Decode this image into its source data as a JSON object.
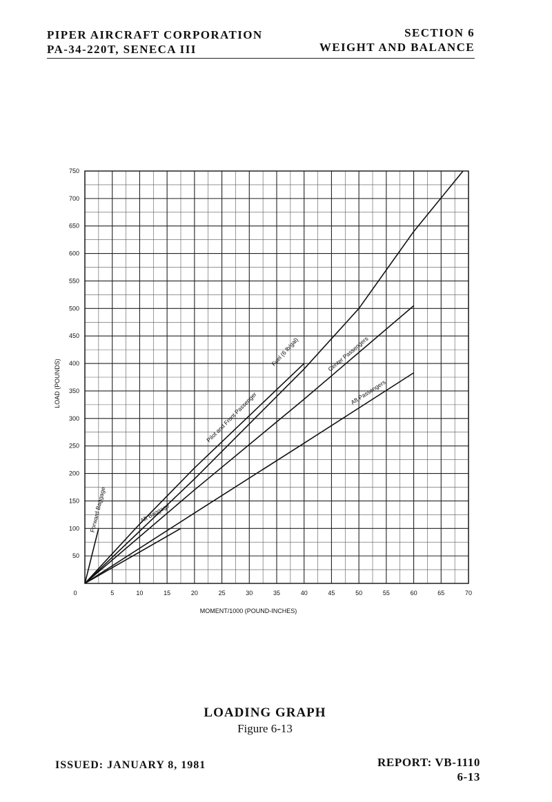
{
  "header": {
    "left_line1": "PIPER AIRCRAFT CORPORATION",
    "left_line2": "PA-34-220T, SENECA III",
    "right_line1": "SECTION 6",
    "right_line2": "WEIGHT AND BALANCE"
  },
  "chart_data": {
    "type": "line",
    "xlabel": "MOMENT/1000 (POUND-INCHES)",
    "ylabel": "LOAD (POUNDS)",
    "xlim": [
      0,
      70
    ],
    "ylim": [
      0,
      750
    ],
    "xticks": [
      0,
      5,
      10,
      15,
      20,
      25,
      30,
      35,
      40,
      45,
      50,
      55,
      60,
      65,
      70
    ],
    "yticks": [
      50,
      100,
      150,
      200,
      250,
      300,
      350,
      400,
      450,
      500,
      550,
      600,
      650,
      700,
      750
    ],
    "minor_grid_x": 2.5,
    "minor_grid_y": 25,
    "grid": true,
    "series": [
      {
        "name": "Forward Baggage",
        "x": [
          0,
          2.5
        ],
        "y": [
          0,
          100
        ]
      },
      {
        "name": "Pilot and Front Passenger",
        "x": [
          0,
          10,
          20,
          30,
          40
        ],
        "y": [
          0,
          108,
          210,
          305,
          400
        ]
      },
      {
        "name": "Fuel (6 lb/gal)",
        "x": [
          0,
          10,
          20,
          30,
          40,
          50,
          60,
          69
        ],
        "y": [
          0,
          95,
          190,
          290,
          390,
          500,
          640,
          750
        ]
      },
      {
        "name": "Center Passengers",
        "x": [
          0,
          20,
          40,
          60
        ],
        "y": [
          0,
          170,
          335,
          505
        ]
      },
      {
        "name": "Aft Passengers",
        "x": [
          0,
          20,
          40,
          60
        ],
        "y": [
          0,
          128,
          255,
          383
        ]
      },
      {
        "name": "Aft Baggage",
        "x": [
          0,
          17.5
        ],
        "y": [
          0,
          100
        ]
      }
    ]
  },
  "caption": {
    "title": "LOADING GRAPH",
    "figure": "Figure 6-13"
  },
  "footer": {
    "issued": "ISSUED: JANUARY 8, 1981",
    "report": "REPORT: VB-1110",
    "page": "6-13"
  }
}
